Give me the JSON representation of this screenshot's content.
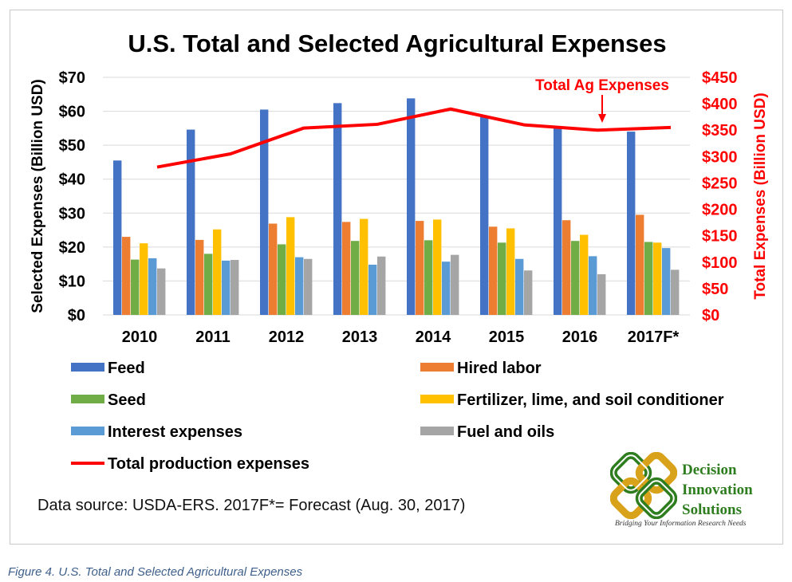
{
  "caption": "Figure 4. U.S. Total and Selected Agricultural Expenses",
  "source_note": "Data source: USDA-ERS. 2017F*= Forecast (Aug. 30, 2017)",
  "logo": {
    "words": [
      "Decision",
      "Innovation",
      "Solutions"
    ],
    "tagline": "Bridging Your Information Research Needs",
    "colors": {
      "green": "#2e7d1f",
      "gold": "#d9a21b"
    }
  },
  "chart_data": {
    "type": "bar",
    "title": "U.S. Total and Selected Agricultural Expenses",
    "categories": [
      "2010",
      "2011",
      "2012",
      "2013",
      "2014",
      "2015",
      "2016",
      "2017F*"
    ],
    "ylabel": "Selected Expenses (Billion USD)",
    "ylabel_right": "Total Expenses (Billion USD)",
    "ylim": [
      0,
      70
    ],
    "ylim_right": [
      0,
      450
    ],
    "yticks": [
      "$0",
      "$10",
      "$20",
      "$30",
      "$40",
      "$50",
      "$60",
      "$70"
    ],
    "yticks_right": [
      "$0",
      "$50",
      "$100",
      "$150",
      "$200",
      "$250",
      "$300",
      "$350",
      "$400",
      "$450"
    ],
    "grid": true,
    "legend_position": "bottom",
    "series": [
      {
        "name": "Feed",
        "color": "#4472c4",
        "values": [
          45.5,
          54.6,
          60.5,
          62.4,
          63.8,
          58.5,
          55.6,
          54.0
        ]
      },
      {
        "name": "Hired labor",
        "color": "#ed7d31",
        "values": [
          23.0,
          22.1,
          26.9,
          27.4,
          27.7,
          26.0,
          27.9,
          29.5
        ]
      },
      {
        "name": "Seed",
        "color": "#70ad47",
        "values": [
          16.3,
          18.0,
          20.8,
          21.8,
          22.0,
          21.3,
          21.8,
          21.5
        ]
      },
      {
        "name": "Fertilizer, lime, and soil conditioner",
        "color": "#ffc000",
        "values": [
          21.1,
          25.2,
          28.8,
          28.3,
          28.1,
          25.5,
          23.6,
          21.3
        ]
      },
      {
        "name": "Interest expenses",
        "color": "#5b9bd5",
        "values": [
          16.7,
          16.0,
          17.0,
          14.8,
          15.7,
          16.5,
          17.3,
          19.7
        ]
      },
      {
        "name": "Fuel and oils",
        "color": "#a5a5a5",
        "values": [
          13.7,
          16.2,
          16.5,
          17.2,
          17.7,
          13.1,
          12.0,
          13.3
        ]
      }
    ],
    "line_series": {
      "name": "Total production expenses",
      "axis": "right",
      "color": "#ff0000",
      "values": [
        280,
        305,
        354,
        361,
        390,
        360,
        350,
        355
      ]
    },
    "annotation": {
      "text": "Total Ag Expenses",
      "color": "#ff0000",
      "points_to": "2016"
    }
  }
}
